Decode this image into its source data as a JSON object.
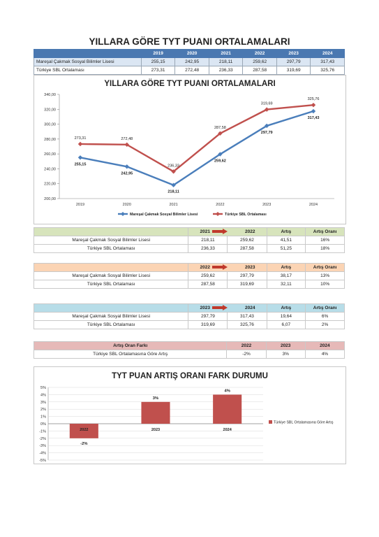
{
  "page_title": "YILLARA GÖRE TYT PUANI ORTALAMALARI",
  "summary_table": {
    "years": [
      "2019",
      "2020",
      "2021",
      "2022",
      "2023",
      "2024"
    ],
    "rows": [
      {
        "name": "Mareşal Çakmak Sosyal Bilimler Lisesi",
        "values": [
          "255,15",
          "242,95",
          "218,11",
          "259,62",
          "297,79",
          "317,43"
        ]
      },
      {
        "name": "Türkiye SBL Ortalaması",
        "values": [
          "273,31",
          "272,48",
          "236,33",
          "287,58",
          "319,69",
          "325,76"
        ]
      }
    ]
  },
  "colors": {
    "school": "#4a7ebb",
    "turkey": "#c0504d",
    "header_blue": "#4a78b1"
  },
  "chart_data": [
    {
      "type": "line",
      "title": "YILLARA GÖRE TYT PUANI ORTALAMALARI",
      "x": [
        "2019",
        "2020",
        "2021",
        "2022",
        "2023",
        "2024"
      ],
      "ylim": [
        200,
        340
      ],
      "yticks": [
        "200,00",
        "220,00",
        "240,00",
        "260,00",
        "280,00",
        "300,00",
        "320,00",
        "340,00"
      ],
      "series": [
        {
          "name": "Mareşal Çakmak Sosyal Bilimler Lisesi",
          "values": [
            255.15,
            242.95,
            218.11,
            259.62,
            297.79,
            317.43
          ],
          "labels": [
            "255,15",
            "242,95",
            "218,11",
            "259,62",
            "297,79",
            "317,43"
          ],
          "color": "#4a7ebb"
        },
        {
          "name": "Türkiye SBL Ortalaması",
          "values": [
            273.31,
            272.48,
            236.33,
            287.58,
            319.69,
            325.76
          ],
          "labels": [
            "273,31",
            "272,48",
            "236,33",
            "287,58",
            "319,69",
            "325,76"
          ],
          "color": "#c0504d"
        }
      ],
      "legend": "bottom"
    },
    {
      "type": "bar",
      "title": "TYT PUAN ARTIŞ ORANI FARK DURUMU",
      "categories": [
        "2022",
        "2023",
        "2024"
      ],
      "series": [
        {
          "name": "Türkiye SBL Ortalamasına Göre Artış",
          "values": [
            -2,
            3,
            4
          ],
          "labels": [
            "-2%",
            "3%",
            "4%"
          ],
          "color": "#c0504d"
        }
      ],
      "ylim": [
        -5,
        5
      ],
      "yticks": [
        "-5%",
        "-4%",
        "-3%",
        "-2%",
        "-1%",
        "0%",
        "1%",
        "2%",
        "3%",
        "4%",
        "5%"
      ],
      "legend": "right"
    }
  ],
  "comparisons": [
    {
      "color": "#d7e4bc",
      "from": "2021",
      "to": "2022",
      "col3": "Artış",
      "col4": "Artış Oranı",
      "rows": [
        {
          "name": "Mareşal Çakmak Sosyal Bilimler Lisesi",
          "a": "218,11",
          "b": "259,62",
          "inc": "41,51",
          "rate": "16%"
        },
        {
          "name": "Türkiye SBL Ortalaması",
          "a": "236,33",
          "b": "287,58",
          "inc": "51,25",
          "rate": "18%"
        }
      ]
    },
    {
      "color": "#fbd4b4",
      "from": "2022",
      "to": "2023",
      "col3": "Artış",
      "col4": "Artış Oranı",
      "rows": [
        {
          "name": "Mareşal Çakmak Sosyal Bilimler Lisesi",
          "a": "259,62",
          "b": "297,79",
          "inc": "38,17",
          "rate": "13%"
        },
        {
          "name": "Türkiye SBL Ortalaması",
          "a": "287,58",
          "b": "319,69",
          "inc": "32,11",
          "rate": "10%"
        }
      ]
    },
    {
      "color": "#b7dde8",
      "from": "2023",
      "to": "2024",
      "col3": "Artış",
      "col4": "Artış Oranı",
      "rows": [
        {
          "name": "Mareşal Çakmak Sosyal Bilimler Lisesi",
          "a": "297,79",
          "b": "317,43",
          "inc": "19,64",
          "rate": "6%"
        },
        {
          "name": "Türkiye SBL Ortalaması",
          "a": "319,69",
          "b": "325,76",
          "inc": "6,07",
          "rate": "2%"
        }
      ]
    }
  ],
  "diff_table": {
    "color": "#e6b9b8",
    "header": "Artış Oran Farkı",
    "years": [
      "2022",
      "2023",
      "2024"
    ],
    "row_name": "Türkiye SBL Ortalamasına Göre Artış",
    "values": [
      "-2%",
      "3%",
      "4%"
    ]
  }
}
